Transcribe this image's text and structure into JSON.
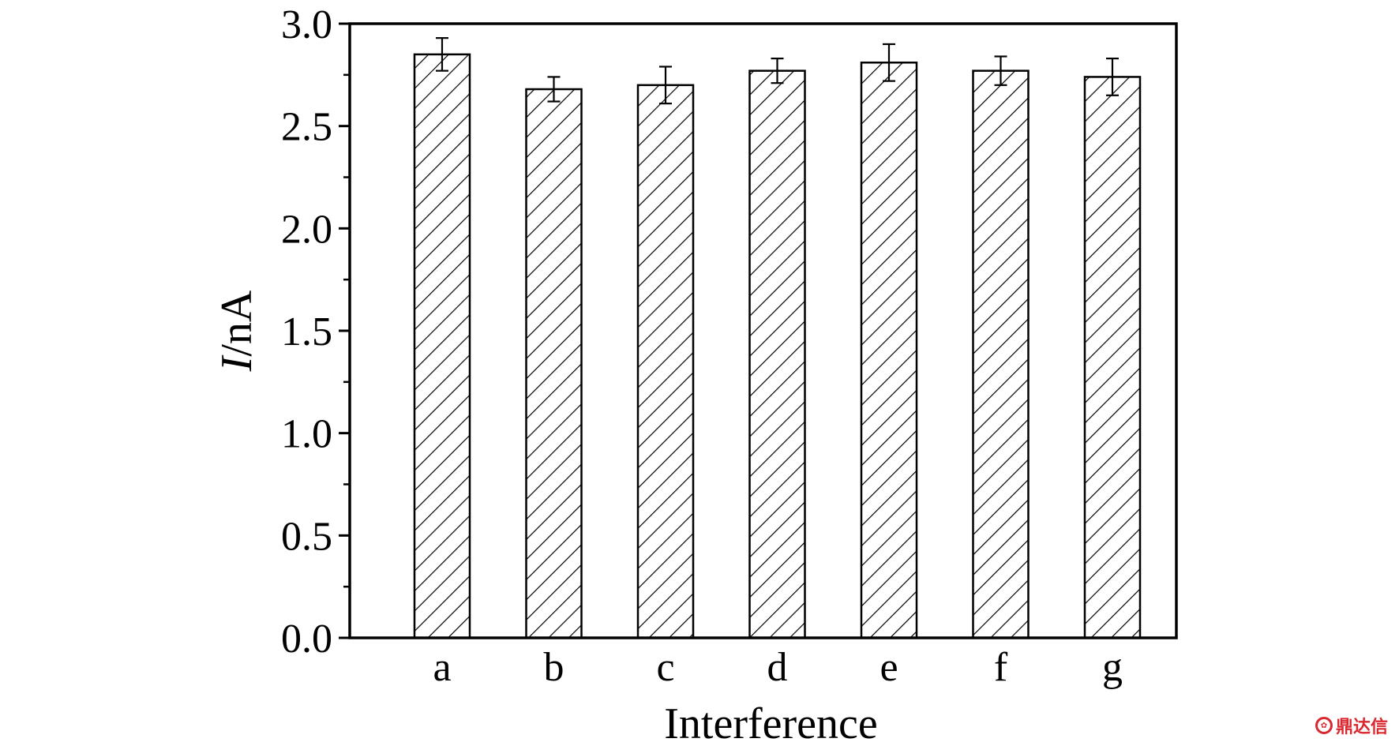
{
  "chart_data": {
    "type": "bar",
    "title": "",
    "xlabel": "Interference",
    "ylabel_italic": "I",
    "ylabel_unit": "/nA",
    "categories": [
      "a",
      "b",
      "c",
      "d",
      "e",
      "f",
      "g"
    ],
    "values": [
      2.85,
      2.68,
      2.7,
      2.77,
      2.81,
      2.77,
      2.74
    ],
    "errors": [
      0.08,
      0.06,
      0.09,
      0.06,
      0.09,
      0.07,
      0.09
    ],
    "ylim": [
      0.0,
      3.0
    ],
    "yticks": [
      "0.0",
      "0.5",
      "1.0",
      "1.5",
      "2.0",
      "2.5",
      "3.0"
    ],
    "bar_fill": "hatched",
    "grid": false,
    "legend": "none",
    "colors": {
      "line": "#000000",
      "background": "#ffffff"
    }
  },
  "watermark": {
    "text": "鼎达信",
    "logo_glyph": "✿"
  }
}
